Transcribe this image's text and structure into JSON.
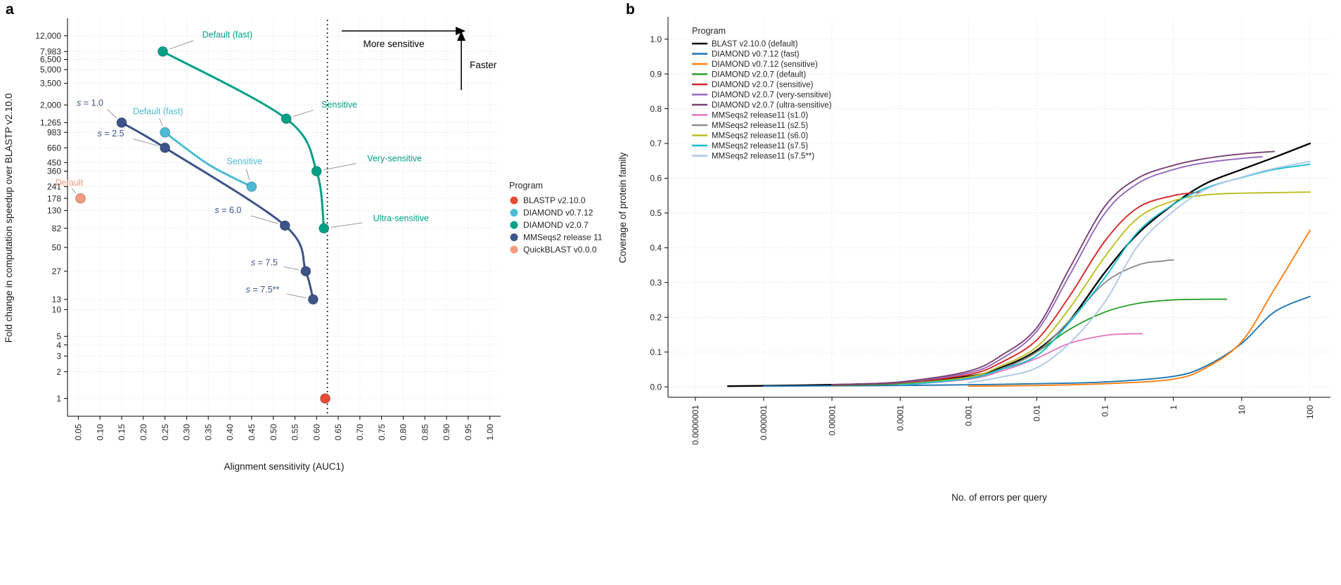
{
  "chart_data": [
    {
      "panel_label": "a",
      "type": "scatter",
      "xlabel": "Alignment sensitivity (AUC1)",
      "ylabel": "Fold change in computation speedup over BLASTP v2.10.0",
      "x_scale": "linear",
      "y_scale": "log",
      "xlim": [
        0.025,
        1.025
      ],
      "ylim": [
        0.63,
        18000
      ],
      "grid": "dotted",
      "legend_title": "Program",
      "reference_line": {
        "x": 0.625,
        "style": "dotted"
      },
      "annotations": [
        {
          "id": "more-sensitive",
          "text": "More sensitive",
          "arrow_dir": "right"
        },
        {
          "id": "faster",
          "text": "Faster",
          "arrow_dir": "up"
        }
      ],
      "x_ticks": [
        {
          "v": 0.05,
          "label": "0.05"
        },
        {
          "v": 0.1,
          "label": "0.10"
        },
        {
          "v": 0.15,
          "label": "0.15"
        },
        {
          "v": 0.2,
          "label": "0.20"
        },
        {
          "v": 0.25,
          "label": "0.25"
        },
        {
          "v": 0.3,
          "label": "0.30"
        },
        {
          "v": 0.35,
          "label": "0.35"
        },
        {
          "v": 0.4,
          "label": "0.40"
        },
        {
          "v": 0.45,
          "label": "0.45"
        },
        {
          "v": 0.5,
          "label": "0.50"
        },
        {
          "v": 0.55,
          "label": "0.55"
        },
        {
          "v": 0.6,
          "label": "0.60"
        },
        {
          "v": 0.65,
          "label": "0.65"
        },
        {
          "v": 0.7,
          "label": "0.70"
        },
        {
          "v": 0.75,
          "label": "0.75"
        },
        {
          "v": 0.8,
          "label": "0.80"
        },
        {
          "v": 0.85,
          "label": "0.85"
        },
        {
          "v": 0.9,
          "label": "0.90"
        },
        {
          "v": 0.95,
          "label": "0.95"
        },
        {
          "v": 1.0,
          "label": "1.00"
        }
      ],
      "y_ticks": [
        {
          "v": 12000,
          "label": "12,000"
        },
        {
          "v": 7983,
          "label": "7,983"
        },
        {
          "v": 6500,
          "label": "6,500"
        },
        {
          "v": 5000,
          "label": "5,000"
        },
        {
          "v": 3500,
          "label": "3,500"
        },
        {
          "v": 2000,
          "label": "2,000"
        },
        {
          "v": 1265,
          "label": "1,265"
        },
        {
          "v": 983,
          "label": "983"
        },
        {
          "v": 660,
          "label": "660"
        },
        {
          "v": 450,
          "label": "450"
        },
        {
          "v": 360,
          "label": "360"
        },
        {
          "v": 241,
          "label": "241"
        },
        {
          "v": 178,
          "label": "178"
        },
        {
          "v": 130,
          "label": "130"
        },
        {
          "v": 82,
          "label": "82"
        },
        {
          "v": 50,
          "label": "50"
        },
        {
          "v": 27,
          "label": "27"
        },
        {
          "v": 13,
          "label": "13"
        },
        {
          "v": 10,
          "label": "10"
        },
        {
          "v": 5,
          "label": "5"
        },
        {
          "v": 4,
          "label": "4"
        },
        {
          "v": 3,
          "label": "3"
        },
        {
          "v": 2,
          "label": "2"
        },
        {
          "v": 1,
          "label": "1"
        }
      ],
      "series": [
        {
          "name": "BLASTP v2.10.0",
          "color": "#e64b35",
          "points": [
            {
              "x": 0.62,
              "y": 1
            }
          ]
        },
        {
          "name": "DIAMOND v0.7.12",
          "color": "#4dbbd5",
          "curve_via": [
            [
              0.35,
              430
            ]
          ],
          "points": [
            {
              "x": 0.25,
              "y": 983,
              "label": "Default (fast)",
              "dx": -10,
              "dy": -26,
              "anchor": "middle"
            },
            {
              "x": 0.45,
              "y": 241,
              "label": "Sensitive",
              "dx": -10,
              "dy": -32,
              "anchor": "middle"
            }
          ]
        },
        {
          "name": "DIAMOND v2.0.7",
          "color": "#00a087",
          "points": [
            {
              "x": 0.245,
              "y": 7983,
              "label": "Default (fast)",
              "dx": 56,
              "dy": -20,
              "anchor": "start"
            },
            {
              "x": 0.53,
              "y": 1400,
              "label": "Sensitive",
              "dx": 50,
              "dy": -16,
              "anchor": "start"
            },
            {
              "x": 0.6,
              "y": 360,
              "label": "Very-sensitive",
              "dx": 72,
              "dy": -14,
              "anchor": "start"
            },
            {
              "x": 0.617,
              "y": 82,
              "label": "Ultra-sensitive",
              "dx": 70,
              "dy": -10,
              "anchor": "start"
            }
          ]
        },
        {
          "name": "MMSeqs2 release 11",
          "color": "#3c5488",
          "points": [
            {
              "x": 0.15,
              "y": 1265,
              "label": "s = 1.0",
              "dx": -26,
              "dy": -24,
              "anchor": "end"
            },
            {
              "x": 0.25,
              "y": 660,
              "label": "s = 2.5",
              "dx": -58,
              "dy": -16,
              "anchor": "end"
            },
            {
              "x": 0.527,
              "y": 88,
              "label": "s = 6.0",
              "dx": -62,
              "dy": -18,
              "anchor": "end"
            },
            {
              "x": 0.575,
              "y": 27,
              "label": "s = 7.5",
              "dx": -40,
              "dy": -8,
              "anchor": "end"
            },
            {
              "x": 0.592,
              "y": 13,
              "label": "s = 7.5**",
              "dx": -48,
              "dy": -10,
              "anchor": "end"
            }
          ]
        },
        {
          "name": "QuickBLAST v0.0.0",
          "color": "#f39b7f",
          "points": [
            {
              "x": 0.055,
              "y": 178,
              "label": "Default",
              "dx": -16,
              "dy": -18,
              "anchor": "middle"
            }
          ]
        }
      ]
    },
    {
      "panel_label": "b",
      "type": "line",
      "xlabel": "No. of errors per query",
      "ylabel": "Coverage of protein family",
      "x_scale": "log",
      "y_scale": "linear",
      "ylim": [
        -0.03,
        1.06
      ],
      "grid": "dotted",
      "legend_title": "Program",
      "x_ticks": [
        {
          "v": 1e-07,
          "label": "0.0000001"
        },
        {
          "v": 1e-06,
          "label": "0.000001"
        },
        {
          "v": 1e-05,
          "label": "0.00001"
        },
        {
          "v": 0.0001,
          "label": "0.0001"
        },
        {
          "v": 0.001,
          "label": "0.001"
        },
        {
          "v": 0.01,
          "label": "0.01"
        },
        {
          "v": 0.1,
          "label": "0.1"
        },
        {
          "v": 1,
          "label": "1"
        },
        {
          "v": 10,
          "label": "10"
        },
        {
          "v": 100,
          "label": "100"
        }
      ],
      "y_ticks": [
        {
          "v": 0.0,
          "label": "0.0"
        },
        {
          "v": 0.1,
          "label": "0.1"
        },
        {
          "v": 0.2,
          "label": "0.2"
        },
        {
          "v": 0.3,
          "label": "0.3"
        },
        {
          "v": 0.4,
          "label": "0.4"
        },
        {
          "v": 0.5,
          "label": "0.5"
        },
        {
          "v": 0.6,
          "label": "0.6"
        },
        {
          "v": 0.7,
          "label": "0.7"
        },
        {
          "v": 0.8,
          "label": "0.8"
        },
        {
          "v": 0.9,
          "label": "0.9"
        },
        {
          "v": 1.0,
          "label": "1.0"
        }
      ],
      "series": [
        {
          "name": "BLAST v2.10.0 (default)",
          "color": "#000000",
          "width": 2.3,
          "points": [
            [
              3e-07,
              0.002
            ],
            [
              1e-06,
              0.003
            ],
            [
              1e-05,
              0.006
            ],
            [
              0.0001,
              0.012
            ],
            [
              0.001,
              0.03
            ],
            [
              0.003,
              0.055
            ],
            [
              0.01,
              0.105
            ],
            [
              0.03,
              0.19
            ],
            [
              0.1,
              0.33
            ],
            [
              0.3,
              0.44
            ],
            [
              1,
              0.525
            ],
            [
              3,
              0.585
            ],
            [
              10,
              0.625
            ],
            [
              30,
              0.66
            ],
            [
              100,
              0.7
            ]
          ]
        },
        {
          "name": "DIAMOND v0.7.12 (fast)",
          "color": "#1f77b4",
          "width": 1.9,
          "points": [
            [
              1e-06,
              0.002
            ],
            [
              1e-05,
              0.003
            ],
            [
              0.0001,
              0.004
            ],
            [
              0.001,
              0.006
            ],
            [
              0.01,
              0.009
            ],
            [
              0.1,
              0.014
            ],
            [
              1,
              0.03
            ],
            [
              3,
              0.06
            ],
            [
              10,
              0.125
            ],
            [
              30,
              0.215
            ],
            [
              100,
              0.26
            ]
          ]
        },
        {
          "name": "DIAMOND v0.7.12 (sensitive)",
          "color": "#ff7f0e",
          "width": 1.9,
          "points": [
            [
              0.001,
              0.002
            ],
            [
              0.01,
              0.004
            ],
            [
              0.1,
              0.009
            ],
            [
              1,
              0.022
            ],
            [
              3,
              0.055
            ],
            [
              10,
              0.13
            ],
            [
              30,
              0.28
            ],
            [
              100,
              0.45
            ]
          ]
        },
        {
          "name": "DIAMOND v2.0.7 (default)",
          "color": "#2ca02c",
          "width": 1.9,
          "points": [
            [
              1e-05,
              0.004
            ],
            [
              0.0001,
              0.009
            ],
            [
              0.001,
              0.027
            ],
            [
              0.003,
              0.05
            ],
            [
              0.01,
              0.1
            ],
            [
              0.03,
              0.165
            ],
            [
              0.1,
              0.215
            ],
            [
              0.3,
              0.24
            ],
            [
              1,
              0.25
            ],
            [
              3,
              0.252
            ],
            [
              6,
              0.252
            ]
          ]
        },
        {
          "name": "DIAMOND v2.0.7 (sensitive)",
          "color": "#d62728",
          "width": 1.9,
          "points": [
            [
              1e-05,
              0.005
            ],
            [
              0.0001,
              0.012
            ],
            [
              0.001,
              0.035
            ],
            [
              0.003,
              0.07
            ],
            [
              0.01,
              0.135
            ],
            [
              0.03,
              0.26
            ],
            [
              0.1,
              0.42
            ],
            [
              0.3,
              0.515
            ],
            [
              1,
              0.55
            ],
            [
              2.5,
              0.56
            ]
          ]
        },
        {
          "name": "DIAMOND v2.0.7 (very-sensitive)",
          "color": "#9467bd",
          "width": 1.9,
          "points": [
            [
              1e-05,
              0.006
            ],
            [
              0.0001,
              0.013
            ],
            [
              0.001,
              0.04
            ],
            [
              0.003,
              0.08
            ],
            [
              0.01,
              0.16
            ],
            [
              0.03,
              0.32
            ],
            [
              0.1,
              0.5
            ],
            [
              0.3,
              0.585
            ],
            [
              1,
              0.625
            ],
            [
              3,
              0.645
            ],
            [
              10,
              0.657
            ],
            [
              20,
              0.662
            ]
          ]
        },
        {
          "name": "DIAMOND v2.0.7 (ultra-sensitive)",
          "color": "#7b4173",
          "width": 1.9,
          "points": [
            [
              1e-05,
              0.006
            ],
            [
              0.0001,
              0.014
            ],
            [
              0.001,
              0.045
            ],
            [
              0.003,
              0.09
            ],
            [
              0.01,
              0.17
            ],
            [
              0.03,
              0.34
            ],
            [
              0.1,
              0.52
            ],
            [
              0.3,
              0.6
            ],
            [
              1,
              0.637
            ],
            [
              3,
              0.657
            ],
            [
              10,
              0.67
            ],
            [
              30,
              0.677
            ]
          ]
        },
        {
          "name": "MMSeqs2 release11 (s1.0)",
          "color": "#e377c2",
          "width": 1.9,
          "points": [
            [
              0.0001,
              0.005
            ],
            [
              0.001,
              0.022
            ],
            [
              0.003,
              0.045
            ],
            [
              0.01,
              0.082
            ],
            [
              0.03,
              0.125
            ],
            [
              0.1,
              0.148
            ],
            [
              0.2,
              0.152
            ],
            [
              0.35,
              0.153
            ]
          ]
        },
        {
          "name": "MMSeqs2 release11 (s2.5)",
          "color": "#8c8c8c",
          "width": 1.9,
          "points": [
            [
              0.0001,
              0.006
            ],
            [
              0.001,
              0.026
            ],
            [
              0.003,
              0.052
            ],
            [
              0.01,
              0.1
            ],
            [
              0.03,
              0.19
            ],
            [
              0.1,
              0.3
            ],
            [
              0.3,
              0.35
            ],
            [
              0.7,
              0.362
            ],
            [
              1,
              0.365
            ]
          ]
        },
        {
          "name": "MMSeqs2 release11 (s6.0)",
          "color": "#bcbd22",
          "width": 1.9,
          "points": [
            [
              0.0001,
              0.006
            ],
            [
              0.001,
              0.028
            ],
            [
              0.003,
              0.06
            ],
            [
              0.01,
              0.115
            ],
            [
              0.03,
              0.225
            ],
            [
              0.1,
              0.375
            ],
            [
              0.3,
              0.485
            ],
            [
              1,
              0.535
            ],
            [
              3,
              0.552
            ],
            [
              10,
              0.557
            ],
            [
              100,
              0.56
            ]
          ]
        },
        {
          "name": "MMSeqs2 release11 (s7.5)",
          "color": "#17becf",
          "width": 1.9,
          "points": [
            [
              0.0001,
              0.005
            ],
            [
              0.001,
              0.024
            ],
            [
              0.003,
              0.05
            ],
            [
              0.01,
              0.09
            ],
            [
              0.03,
              0.185
            ],
            [
              0.1,
              0.315
            ],
            [
              0.3,
              0.445
            ],
            [
              1,
              0.525
            ],
            [
              3,
              0.572
            ],
            [
              10,
              0.602
            ],
            [
              30,
              0.625
            ],
            [
              100,
              0.64
            ]
          ]
        },
        {
          "name": "MMSeqs2 release11 (s7.5**)",
          "color": "#aec7e8",
          "width": 1.9,
          "points": [
            [
              0.001,
              0.012
            ],
            [
              0.003,
              0.028
            ],
            [
              0.01,
              0.055
            ],
            [
              0.03,
              0.125
            ],
            [
              0.1,
              0.245
            ],
            [
              0.3,
              0.405
            ],
            [
              1,
              0.505
            ],
            [
              3,
              0.568
            ],
            [
              10,
              0.603
            ],
            [
              30,
              0.628
            ],
            [
              100,
              0.648
            ]
          ]
        }
      ]
    }
  ]
}
